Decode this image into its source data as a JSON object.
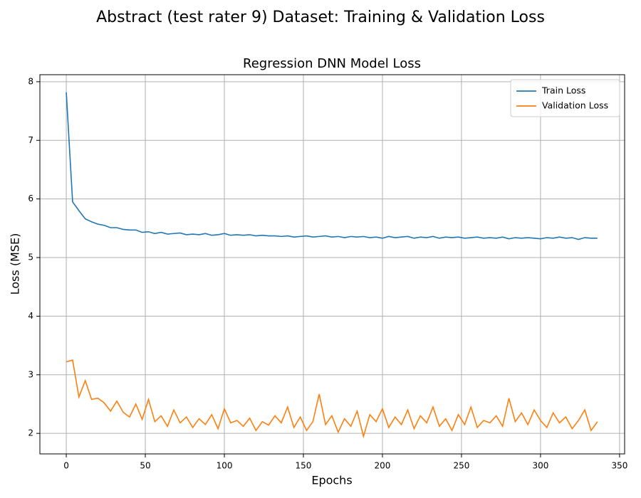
{
  "chart_data": {
    "type": "line",
    "suptitle": "Abstract (test rater 9) Dataset: Training & Validation Loss",
    "title": "Regression DNN Model Loss",
    "x_label": "Epochs",
    "y_label": "Loss (MSE)",
    "x": [
      0,
      4,
      8,
      12,
      16,
      20,
      24,
      28,
      32,
      36,
      40,
      44,
      48,
      52,
      56,
      60,
      64,
      68,
      72,
      76,
      80,
      84,
      88,
      92,
      96,
      100,
      104,
      108,
      112,
      116,
      120,
      124,
      128,
      132,
      136,
      140,
      144,
      148,
      152,
      156,
      160,
      164,
      168,
      172,
      176,
      180,
      184,
      188,
      192,
      196,
      200,
      204,
      208,
      212,
      216,
      220,
      224,
      228,
      232,
      236,
      240,
      244,
      248,
      252,
      256,
      260,
      264,
      268,
      272,
      276,
      280,
      284,
      288,
      292,
      296,
      300,
      304,
      308,
      312,
      316,
      320,
      324,
      328,
      332,
      336
    ],
    "series": [
      {
        "name": "Train Loss",
        "color": "#1f77b4",
        "values": [
          7.82,
          5.95,
          5.8,
          5.66,
          5.61,
          5.57,
          5.55,
          5.51,
          5.51,
          5.48,
          5.47,
          5.47,
          5.43,
          5.44,
          5.41,
          5.43,
          5.4,
          5.41,
          5.42,
          5.39,
          5.4,
          5.39,
          5.41,
          5.38,
          5.39,
          5.41,
          5.38,
          5.39,
          5.38,
          5.39,
          5.37,
          5.38,
          5.37,
          5.37,
          5.36,
          5.37,
          5.35,
          5.36,
          5.37,
          5.35,
          5.36,
          5.37,
          5.35,
          5.36,
          5.34,
          5.36,
          5.35,
          5.36,
          5.34,
          5.35,
          5.33,
          5.36,
          5.34,
          5.35,
          5.36,
          5.33,
          5.35,
          5.34,
          5.36,
          5.33,
          5.35,
          5.34,
          5.35,
          5.33,
          5.34,
          5.35,
          5.33,
          5.34,
          5.33,
          5.35,
          5.32,
          5.34,
          5.33,
          5.34,
          5.33,
          5.32,
          5.34,
          5.33,
          5.35,
          5.33,
          5.34,
          5.31,
          5.34,
          5.33,
          5.33
        ]
      },
      {
        "name": "Validation Loss",
        "color": "#ff7f0e",
        "values": [
          3.22,
          3.25,
          2.62,
          2.9,
          2.58,
          2.6,
          2.52,
          2.38,
          2.55,
          2.36,
          2.28,
          2.5,
          2.24,
          2.58,
          2.2,
          2.3,
          2.12,
          2.4,
          2.18,
          2.28,
          2.1,
          2.25,
          2.15,
          2.32,
          2.08,
          2.42,
          2.18,
          2.22,
          2.12,
          2.26,
          2.05,
          2.2,
          2.14,
          2.3,
          2.18,
          2.45,
          2.1,
          2.28,
          2.05,
          2.2,
          2.67,
          2.15,
          2.3,
          2.02,
          2.25,
          2.12,
          2.38,
          1.95,
          2.32,
          2.2,
          2.42,
          2.1,
          2.28,
          2.15,
          2.4,
          2.08,
          2.3,
          2.18,
          2.45,
          2.12,
          2.25,
          2.05,
          2.32,
          2.15,
          2.45,
          2.1,
          2.22,
          2.18,
          2.3,
          2.12,
          2.6,
          2.2,
          2.35,
          2.15,
          2.4,
          2.22,
          2.1,
          2.35,
          2.18,
          2.28,
          2.08,
          2.22,
          2.4,
          2.05,
          2.2
        ]
      }
    ],
    "xlim": [
      -16.7,
      353.2
    ],
    "ylim": [
      1.65,
      8.12
    ],
    "xticks": [
      0,
      50,
      100,
      150,
      200,
      250,
      300,
      350
    ],
    "yticks": [
      2,
      3,
      4,
      5,
      6,
      7,
      8
    ],
    "grid": true,
    "legend": "upper right"
  }
}
